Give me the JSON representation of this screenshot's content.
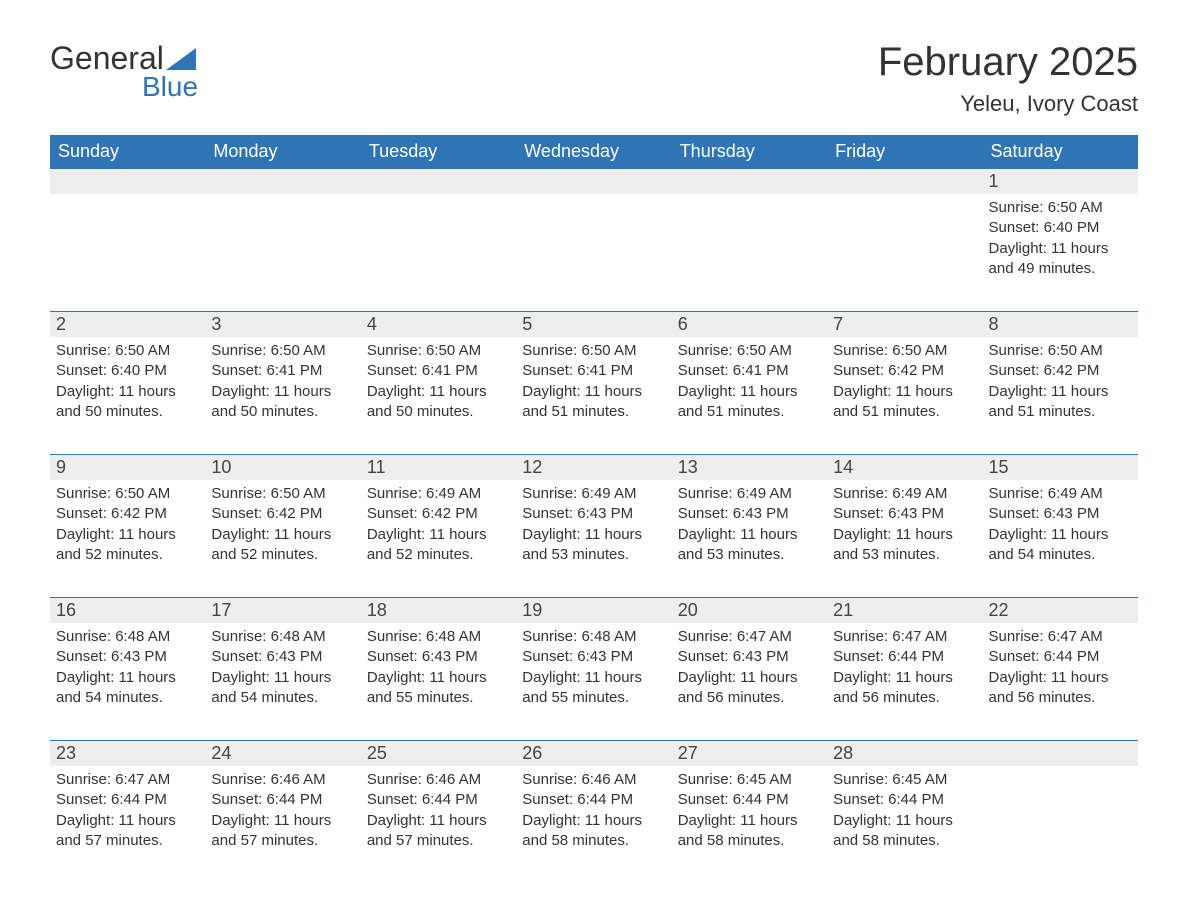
{
  "brand": {
    "word1": "General",
    "word2": "Blue",
    "sail_color": "#2f75b5"
  },
  "title": "February 2025",
  "location": "Yeleu, Ivory Coast",
  "colors": {
    "header_bg": "#2f75b5",
    "header_text": "#ffffff",
    "daynum_bg": "#eeeeee",
    "rule": "#2f75b5",
    "body_text": "#333333",
    "page_bg": "#ffffff"
  },
  "typography": {
    "title_fontsize": 40,
    "location_fontsize": 22,
    "weekday_fontsize": 18,
    "body_fontsize": 15
  },
  "layout": {
    "columns": 7,
    "rows": 5
  },
  "weekdays": [
    "Sunday",
    "Monday",
    "Tuesday",
    "Wednesday",
    "Thursday",
    "Friday",
    "Saturday"
  ],
  "weeks": [
    [
      null,
      null,
      null,
      null,
      null,
      null,
      {
        "n": 1,
        "sunrise": "6:50 AM",
        "sunset": "6:40 PM",
        "dl": "11 hours and 49 minutes."
      }
    ],
    [
      {
        "n": 2,
        "sunrise": "6:50 AM",
        "sunset": "6:40 PM",
        "dl": "11 hours and 50 minutes."
      },
      {
        "n": 3,
        "sunrise": "6:50 AM",
        "sunset": "6:41 PM",
        "dl": "11 hours and 50 minutes."
      },
      {
        "n": 4,
        "sunrise": "6:50 AM",
        "sunset": "6:41 PM",
        "dl": "11 hours and 50 minutes."
      },
      {
        "n": 5,
        "sunrise": "6:50 AM",
        "sunset": "6:41 PM",
        "dl": "11 hours and 51 minutes."
      },
      {
        "n": 6,
        "sunrise": "6:50 AM",
        "sunset": "6:41 PM",
        "dl": "11 hours and 51 minutes."
      },
      {
        "n": 7,
        "sunrise": "6:50 AM",
        "sunset": "6:42 PM",
        "dl": "11 hours and 51 minutes."
      },
      {
        "n": 8,
        "sunrise": "6:50 AM",
        "sunset": "6:42 PM",
        "dl": "11 hours and 51 minutes."
      }
    ],
    [
      {
        "n": 9,
        "sunrise": "6:50 AM",
        "sunset": "6:42 PM",
        "dl": "11 hours and 52 minutes."
      },
      {
        "n": 10,
        "sunrise": "6:50 AM",
        "sunset": "6:42 PM",
        "dl": "11 hours and 52 minutes."
      },
      {
        "n": 11,
        "sunrise": "6:49 AM",
        "sunset": "6:42 PM",
        "dl": "11 hours and 52 minutes."
      },
      {
        "n": 12,
        "sunrise": "6:49 AM",
        "sunset": "6:43 PM",
        "dl": "11 hours and 53 minutes."
      },
      {
        "n": 13,
        "sunrise": "6:49 AM",
        "sunset": "6:43 PM",
        "dl": "11 hours and 53 minutes."
      },
      {
        "n": 14,
        "sunrise": "6:49 AM",
        "sunset": "6:43 PM",
        "dl": "11 hours and 53 minutes."
      },
      {
        "n": 15,
        "sunrise": "6:49 AM",
        "sunset": "6:43 PM",
        "dl": "11 hours and 54 minutes."
      }
    ],
    [
      {
        "n": 16,
        "sunrise": "6:48 AM",
        "sunset": "6:43 PM",
        "dl": "11 hours and 54 minutes."
      },
      {
        "n": 17,
        "sunrise": "6:48 AM",
        "sunset": "6:43 PM",
        "dl": "11 hours and 54 minutes."
      },
      {
        "n": 18,
        "sunrise": "6:48 AM",
        "sunset": "6:43 PM",
        "dl": "11 hours and 55 minutes."
      },
      {
        "n": 19,
        "sunrise": "6:48 AM",
        "sunset": "6:43 PM",
        "dl": "11 hours and 55 minutes."
      },
      {
        "n": 20,
        "sunrise": "6:47 AM",
        "sunset": "6:43 PM",
        "dl": "11 hours and 56 minutes."
      },
      {
        "n": 21,
        "sunrise": "6:47 AM",
        "sunset": "6:44 PM",
        "dl": "11 hours and 56 minutes."
      },
      {
        "n": 22,
        "sunrise": "6:47 AM",
        "sunset": "6:44 PM",
        "dl": "11 hours and 56 minutes."
      }
    ],
    [
      {
        "n": 23,
        "sunrise": "6:47 AM",
        "sunset": "6:44 PM",
        "dl": "11 hours and 57 minutes."
      },
      {
        "n": 24,
        "sunrise": "6:46 AM",
        "sunset": "6:44 PM",
        "dl": "11 hours and 57 minutes."
      },
      {
        "n": 25,
        "sunrise": "6:46 AM",
        "sunset": "6:44 PM",
        "dl": "11 hours and 57 minutes."
      },
      {
        "n": 26,
        "sunrise": "6:46 AM",
        "sunset": "6:44 PM",
        "dl": "11 hours and 58 minutes."
      },
      {
        "n": 27,
        "sunrise": "6:45 AM",
        "sunset": "6:44 PM",
        "dl": "11 hours and 58 minutes."
      },
      {
        "n": 28,
        "sunrise": "6:45 AM",
        "sunset": "6:44 PM",
        "dl": "11 hours and 58 minutes."
      },
      null
    ]
  ],
  "labels": {
    "sunrise": "Sunrise:",
    "sunset": "Sunset:",
    "daylight": "Daylight:"
  }
}
